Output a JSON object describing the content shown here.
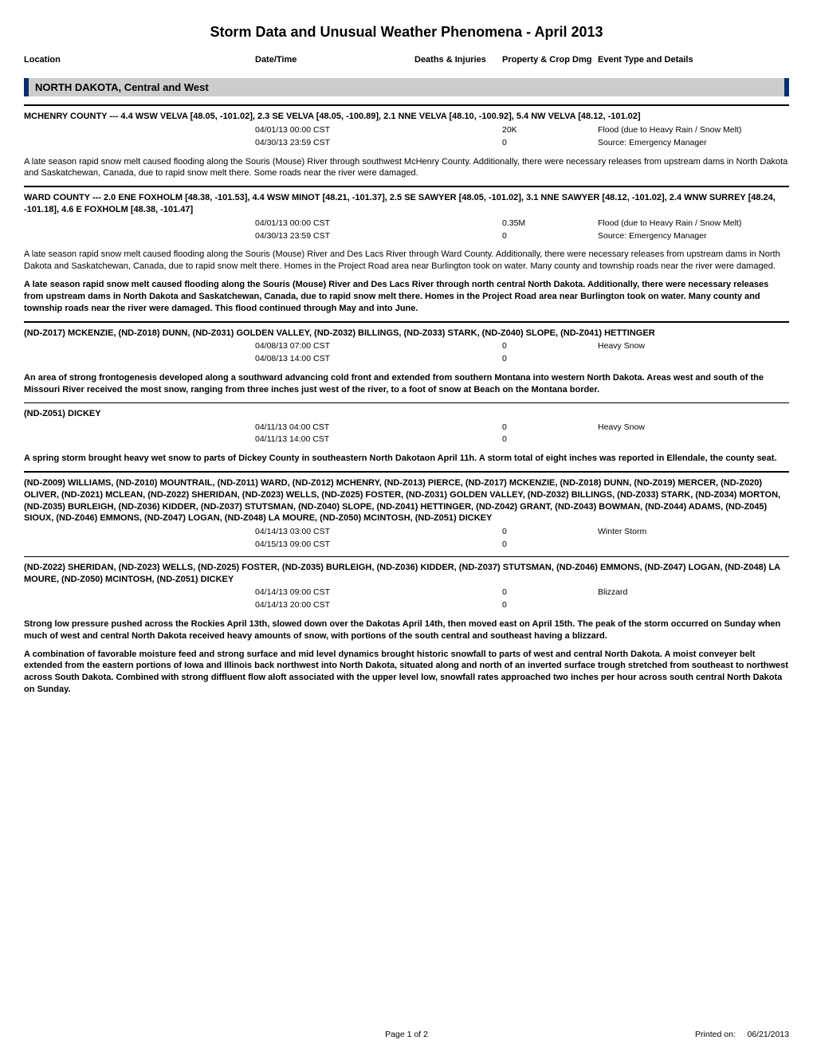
{
  "title": "Storm Data and Unusual Weather Phenomena -  April 2013",
  "columns": {
    "location": "Location",
    "datetime": "Date/Time",
    "deaths": "Deaths & Injuries",
    "property": "Property & Crop Dmg",
    "event": "Event Type and Details"
  },
  "region": "NORTH DAKOTA, Central and West",
  "entries": [
    {
      "rule": "thick",
      "loc_header": "MCHENRY COUNTY --- 4.4 WSW VELVA [48.05, -101.02], 2.3 SE VELVA [48.05, -100.89], 2.1 NNE VELVA [48.10, -100.92], 5.4 NW VELVA [48.12, -101.02]",
      "start_dt": "04/01/13 00:00 CST",
      "end_dt": "04/30/13 23:59 CST",
      "prop_dmg": "20K",
      "crop_dmg": "0",
      "event": "Flood (due to Heavy Rain / Snow Melt)",
      "source": "Source: Emergency Manager",
      "narratives": [
        {
          "bold": false,
          "text": "A late season rapid snow melt caused flooding along the Souris (Mouse) River through southwest McHenry County. Additionally, there were necessary releases from upstream dams in North Dakota and Saskatchewan, Canada, due to rapid snow melt there. Some roads near the river were damaged."
        }
      ]
    },
    {
      "rule": "thick",
      "loc_header": "WARD COUNTY --- 2.0 ENE FOXHOLM [48.38, -101.53], 4.4 WSW MINOT [48.21, -101.37], 2.5 SE SAWYER [48.05, -101.02], 3.1 NNE SAWYER [48.12, -101.02], 2.4 WNW SURREY [48.24, -101.18], 4.6 E FOXHOLM [48.38, -101.47]",
      "start_dt": "04/01/13 00:00 CST",
      "end_dt": "04/30/13 23:59 CST",
      "prop_dmg": "0.35M",
      "crop_dmg": "0",
      "event": "Flood (due to Heavy Rain / Snow Melt)",
      "source": "Source: Emergency Manager",
      "narratives": [
        {
          "bold": false,
          "text": "A late season rapid snow melt caused flooding along the Souris (Mouse) River and Des Lacs River through Ward County. Additionally, there were necessary releases from upstream dams in North Dakota and Saskatchewan, Canada, due to rapid snow melt there. Homes in the Project Road area near Burlington took on water. Many county and township roads near the river were damaged."
        },
        {
          "bold": true,
          "text": "A late season rapid snow melt caused flooding along the Souris (Mouse) River and Des Lacs River through north central North Dakota. Additionally, there were necessary releases from upstream dams in North Dakota and Saskatchewan, Canada, due to rapid snow melt there. Homes in the Project Road area near Burlington took on water. Many county and township roads near the river were damaged. This flood continued through May and into June."
        }
      ]
    },
    {
      "rule": "thick",
      "loc_header": "(ND-Z017) MCKENZIE, (ND-Z018) DUNN, (ND-Z031) GOLDEN VALLEY, (ND-Z032) BILLINGS, (ND-Z033) STARK, (ND-Z040) SLOPE, (ND-Z041) HETTINGER",
      "start_dt": "04/08/13 07:00 CST",
      "end_dt": "04/08/13 14:00 CST",
      "prop_dmg": "0",
      "crop_dmg": "0",
      "event": "Heavy Snow",
      "source": "",
      "narratives": [
        {
          "bold": true,
          "text": "An area of strong frontogenesis developed along a southward advancing cold front and extended from southern Montana into western North Dakota. Areas west and south of the Missouri River received the most snow, ranging from three inches just west of the river, to a foot of snow at Beach on the Montana border."
        }
      ]
    },
    {
      "rule": "thin",
      "loc_header": "(ND-Z051) DICKEY",
      "start_dt": "04/11/13 04:00 CST",
      "end_dt": "04/11/13 14:00 CST",
      "prop_dmg": "0",
      "crop_dmg": "0",
      "event": "Heavy Snow",
      "source": "",
      "narratives": [
        {
          "bold": true,
          "text": "A spring storm brought heavy wet snow to parts of Dickey County in southeastern North Dakotaon April 11h. A storm total of eight inches was reported in Ellendale, the county seat."
        }
      ]
    },
    {
      "rule": "thick",
      "loc_header": "(ND-Z009) WILLIAMS, (ND-Z010) MOUNTRAIL, (ND-Z011) WARD, (ND-Z012) MCHENRY, (ND-Z013) PIERCE, (ND-Z017) MCKENZIE, (ND-Z018) DUNN, (ND-Z019) MERCER, (ND-Z020) OLIVER, (ND-Z021) MCLEAN, (ND-Z022) SHERIDAN, (ND-Z023) WELLS, (ND-Z025) FOSTER, (ND-Z031) GOLDEN VALLEY, (ND-Z032) BILLINGS, (ND-Z033) STARK, (ND-Z034) MORTON, (ND-Z035) BURLEIGH, (ND-Z036) KIDDER, (ND-Z037) STUTSMAN, (ND-Z040) SLOPE, (ND-Z041) HETTINGER, (ND-Z042) GRANT, (ND-Z043) BOWMAN, (ND-Z044) ADAMS, (ND-Z045) SIOUX, (ND-Z046) EMMONS, (ND-Z047) LOGAN, (ND-Z048) LA MOURE, (ND-Z050) MCINTOSH, (ND-Z051) DICKEY",
      "start_dt": "04/14/13 03:00 CST",
      "end_dt": "04/15/13 09:00 CST",
      "prop_dmg": "0",
      "crop_dmg": "0",
      "event": "Winter Storm",
      "source": "",
      "narratives": []
    },
    {
      "rule": "thin",
      "loc_header": "(ND-Z022) SHERIDAN, (ND-Z023) WELLS, (ND-Z025) FOSTER, (ND-Z035) BURLEIGH, (ND-Z036) KIDDER, (ND-Z037) STUTSMAN, (ND-Z046) EMMONS, (ND-Z047) LOGAN, (ND-Z048) LA MOURE, (ND-Z050) MCINTOSH, (ND-Z051) DICKEY",
      "start_dt": "04/14/13 09:00 CST",
      "end_dt": "04/14/13 20:00 CST",
      "prop_dmg": "0",
      "crop_dmg": "0",
      "event": "Blizzard",
      "source": "",
      "narratives": [
        {
          "bold": true,
          "text": "Strong low pressure pushed across the Rockies April 13th, slowed down over the Dakotas April 14th, then moved east on April 15th. The peak of the storm occurred on Sunday when much of west and central North Dakota received heavy amounts of snow, with portions of the south central and southeast having a blizzard."
        },
        {
          "bold": true,
          "text": "A combination of favorable moisture feed and strong surface and mid level dynamics brought historic snowfall to parts of west and central North Dakota. A moist conveyer belt extended from the eastern portions of Iowa and Illinois back northwest into North Dakota, situated along and north of an inverted surface trough stretched from southeast to northwest across South Dakota. Combined with strong diffluent flow aloft associated with the upper level low, snowfall rates approached two inches per hour across south central North Dakota on Sunday."
        }
      ]
    }
  ],
  "footer": {
    "page": "Page 1 of 2",
    "printed_label": "Printed on:",
    "printed_date": "06/21/2013"
  },
  "colors": {
    "region_bg": "#cccccc",
    "region_border": "#0a2d6e",
    "text": "#000000",
    "page_bg": "#ffffff"
  }
}
